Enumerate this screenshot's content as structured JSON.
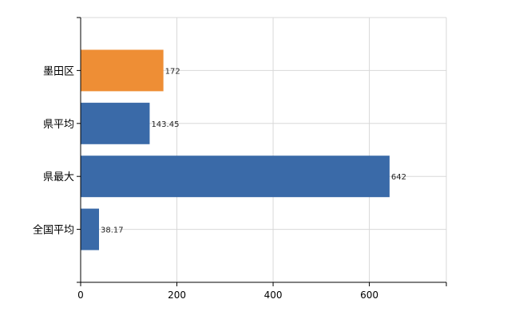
{
  "chart_data": {
    "type": "bar",
    "orientation": "horizontal",
    "categories": [
      "墨田区",
      "県平均",
      "県最大",
      "全国平均"
    ],
    "values": [
      172,
      143.45,
      642,
      38.17
    ],
    "value_labels": [
      "172",
      "143.45",
      "642",
      "38.17"
    ],
    "highlight": "墨田区",
    "colors": {
      "default": "#3a6aa8",
      "highlight": "#ee8e35",
      "grid": "#d8d8d8",
      "axis": "#000000"
    },
    "xlim": [
      0,
      760
    ],
    "xticks": [
      0,
      200,
      400,
      600
    ],
    "grid": true,
    "legend": "none"
  }
}
